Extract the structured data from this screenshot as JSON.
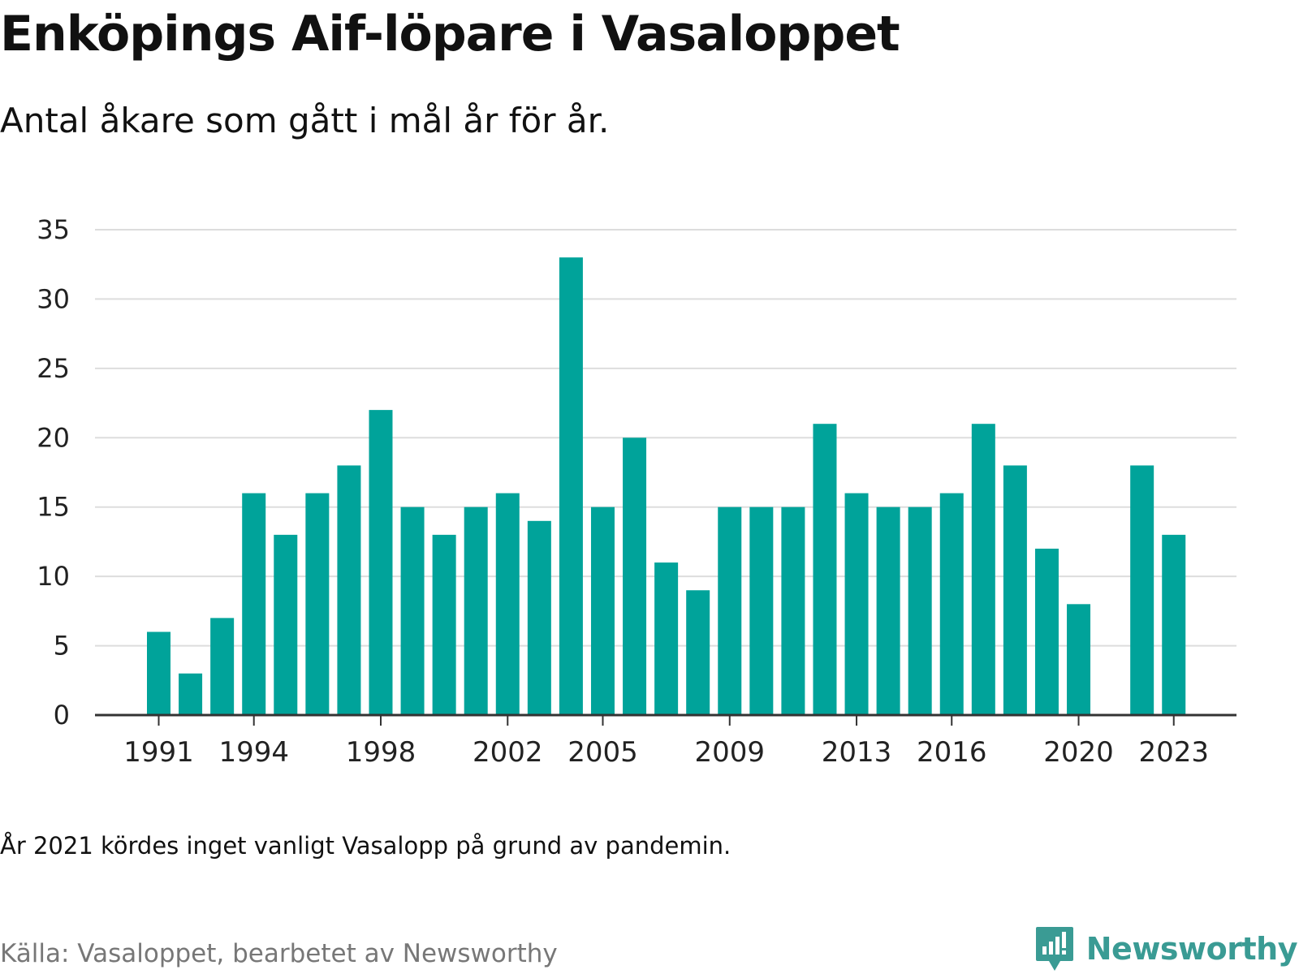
{
  "title": "Enköpings Aif-löpare i Vasaloppet",
  "subtitle": "Antal åkare som gått i mål år för år.",
  "footnote": "År 2021 kördes inget vanligt Vasalopp på grund av pandemin.",
  "source": "Källa: Vasaloppet, bearbetet av Newsworthy",
  "brand": {
    "name": "Newsworthy",
    "icon": "newsworthy-logo-icon"
  },
  "colors": {
    "bar": "#00a39a",
    "grid": "#dddddd",
    "axis": "#333333",
    "brand": "#3a9b94"
  },
  "chart_data": {
    "type": "bar",
    "categories": [
      "1991",
      "1992",
      "1993",
      "1994",
      "1995",
      "1996",
      "1997",
      "1998",
      "1999",
      "2000",
      "2001",
      "2002",
      "2003",
      "2004",
      "2005",
      "2006",
      "2007",
      "2008",
      "2009",
      "2010",
      "2011",
      "2012",
      "2013",
      "2014",
      "2015",
      "2016",
      "2017",
      "2018",
      "2019",
      "2020",
      "2021",
      "2022",
      "2023"
    ],
    "values": [
      6,
      3,
      7,
      16,
      13,
      16,
      18,
      22,
      15,
      13,
      15,
      16,
      14,
      33,
      15,
      20,
      11,
      9,
      15,
      15,
      15,
      21,
      16,
      15,
      15,
      16,
      21,
      18,
      12,
      8,
      null,
      18,
      13
    ],
    "x_tick_labels": [
      "1991",
      "1994",
      "1998",
      "2002",
      "2005",
      "2009",
      "2013",
      "2016",
      "2020",
      "2023"
    ],
    "y_ticks": [
      0,
      5,
      10,
      15,
      20,
      25,
      30,
      35
    ],
    "ylim": [
      0,
      35
    ],
    "grid": true,
    "legend": "none"
  }
}
